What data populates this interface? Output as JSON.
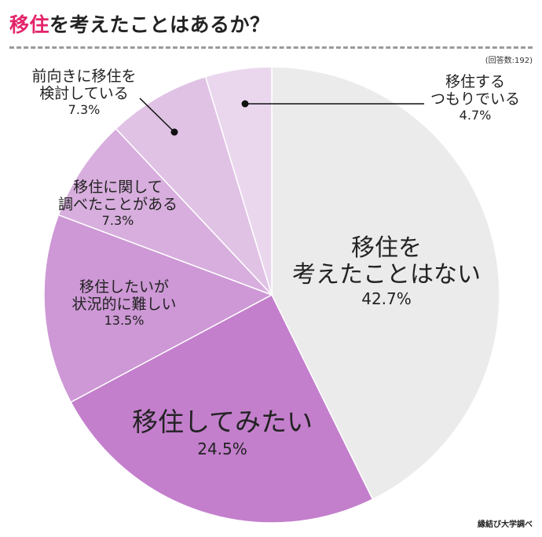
{
  "header": {
    "title_accent": "移住",
    "title_rest": "を考えたことはあるか？",
    "sample_note": "(回答数:192)"
  },
  "footer": {
    "credit": "縁結び大学調べ"
  },
  "chart_data": {
    "type": "pie",
    "title": "移住を考えたことはあるか？",
    "start": "12 o'clock",
    "direction": "clockwise",
    "slices": [
      {
        "label_lines": [
          "移住を",
          "考えたことはない"
        ],
        "value": 42.7,
        "pct": "42.7%",
        "color": "#ebebeb"
      },
      {
        "label_lines": [
          "移住してみたい"
        ],
        "value": 24.5,
        "pct": "24.5%",
        "color": "#c37fcc"
      },
      {
        "label_lines": [
          "移住したいが",
          "状況的に難しい"
        ],
        "value": 13.5,
        "pct": "13.5%",
        "color": "#cd98d5"
      },
      {
        "label_lines": [
          "移住に関して",
          "調べたことがある"
        ],
        "value": 7.3,
        "pct": "7.3%",
        "color": "#d7aedd"
      },
      {
        "label_lines": [
          "前向きに移住を",
          "検討している"
        ],
        "value": 7.3,
        "pct": "7.3%",
        "color": "#e0c2e5"
      },
      {
        "label_lines": [
          "移住する",
          "つもりでいる"
        ],
        "value": 4.7,
        "pct": "4.7%",
        "color": "#ead7ee"
      }
    ]
  }
}
